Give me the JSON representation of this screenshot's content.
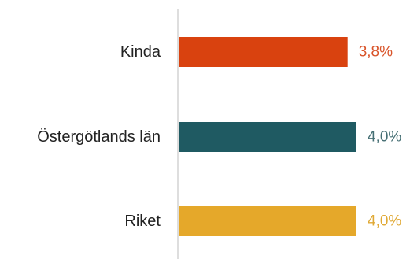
{
  "chart_data": {
    "type": "bar",
    "orientation": "horizontal",
    "categories": [
      "Kinda",
      "Östergötlands län",
      "Riket"
    ],
    "values": [
      3.8,
      4.0,
      4.0
    ],
    "value_labels": [
      "3,8%",
      "4,0%",
      "4,0%"
    ],
    "colors": [
      "#d9420f",
      "#1f5a62",
      "#e5a82a"
    ],
    "label_colors": [
      "#d9542a",
      "#466f74",
      "#e0a935"
    ],
    "title": "",
    "xlabel": "",
    "ylabel": "",
    "xlim": [
      0,
      4.0
    ],
    "grid": false,
    "legend": "none"
  }
}
